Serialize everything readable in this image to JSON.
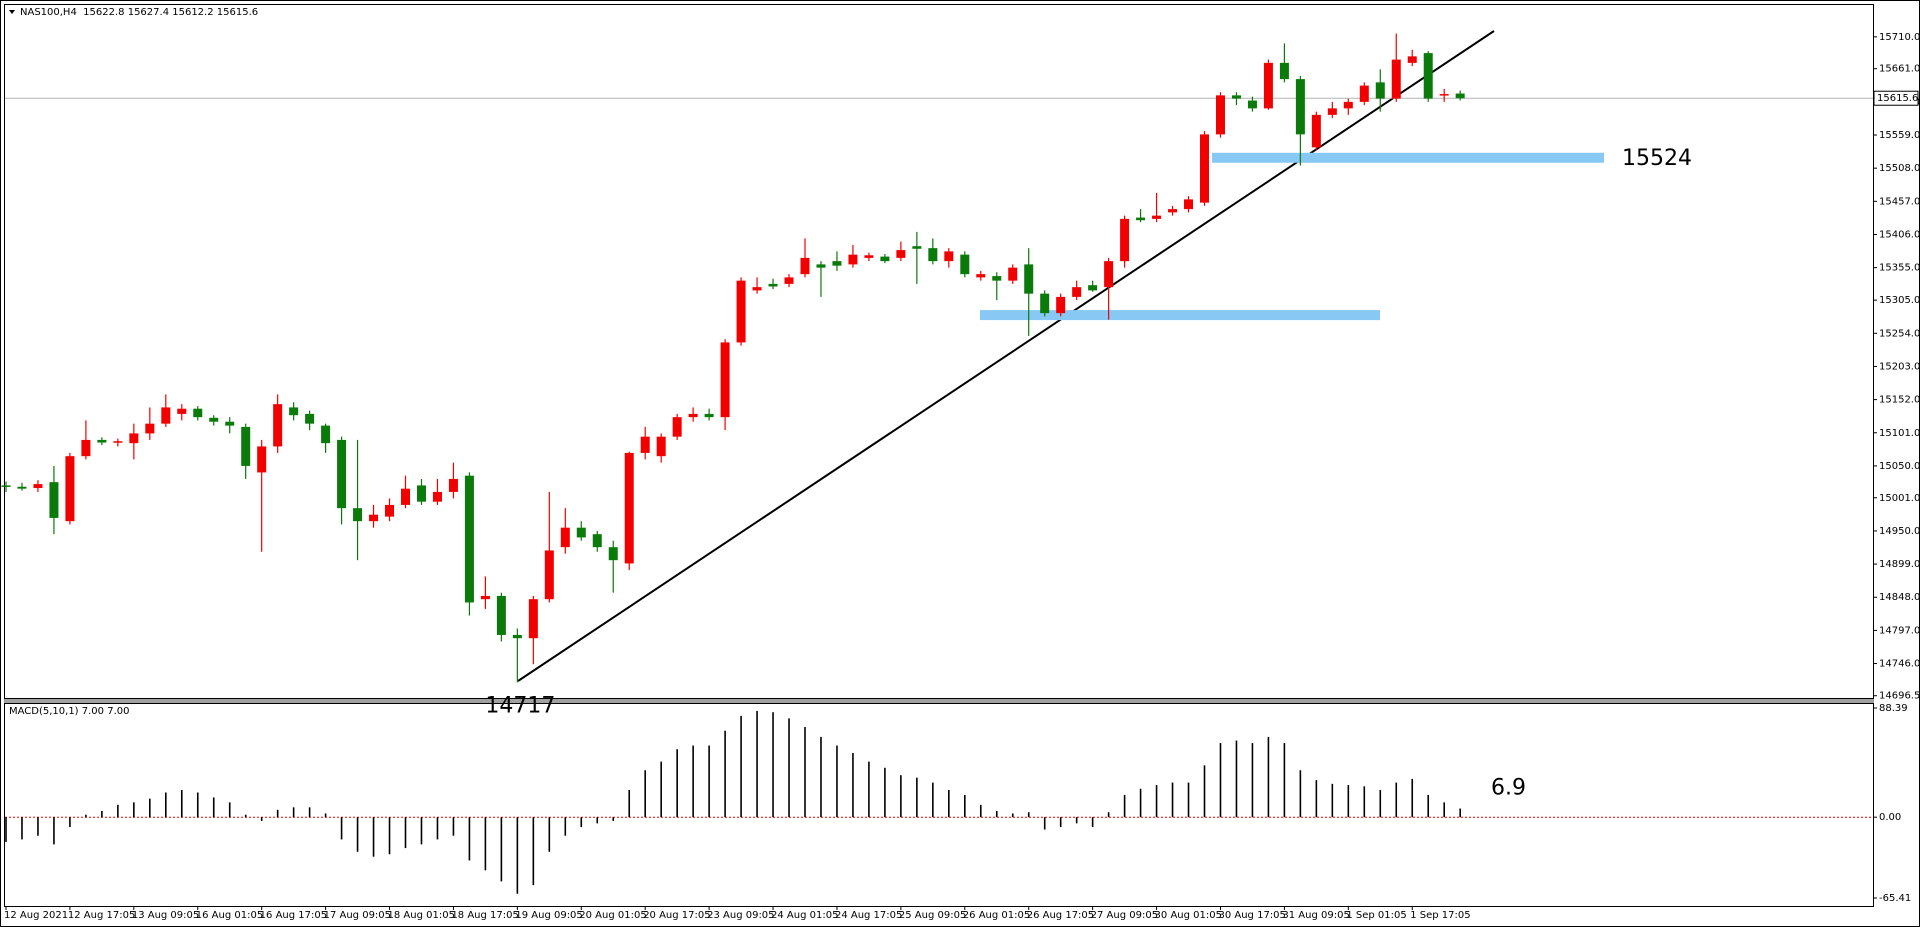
{
  "chart_data": [
    {
      "type": "candlestick",
      "title": "NAS100,H4  15622.8 15627.4 15612.2 15615.6",
      "categories": [
        "12 Aug 2021",
        null,
        null,
        null,
        "12 Aug 17:05",
        null,
        null,
        null,
        "13 Aug 09:05",
        null,
        null,
        null,
        "16 Aug 01:05",
        null,
        null,
        null,
        "16 Aug 17:05",
        null,
        null,
        null,
        "17 Aug 09:05",
        null,
        null,
        null,
        "18 Aug 01:05",
        null,
        null,
        null,
        "18 Aug 17:05",
        null,
        null,
        null,
        "19 Aug 09:05",
        null,
        null,
        null,
        "20 Aug 01:05",
        null,
        null,
        null,
        "20 Aug 17:05",
        null,
        null,
        null,
        "23 Aug 09:05",
        null,
        null,
        null,
        "24 Aug 01:05",
        null,
        null,
        null,
        "24 Aug 17:05",
        null,
        null,
        null,
        "25 Aug 09:05",
        null,
        null,
        null,
        "26 Aug 01:05",
        null,
        null,
        null,
        "26 Aug 17:05",
        null,
        null,
        null,
        "27 Aug 09:05",
        null,
        null,
        null,
        "30 Aug 01:05",
        null,
        null,
        null,
        "30 Aug 17:05",
        null,
        null,
        null,
        "31 Aug 09:05",
        null,
        null,
        null,
        "1 Sep 01:05",
        null,
        null,
        null,
        "1 Sep 17:05",
        null,
        null,
        null
      ],
      "open": [
        15020,
        15018,
        15016,
        15025,
        14965,
        15065,
        15090,
        15086,
        15085,
        15100,
        15115,
        15130,
        15138,
        15124,
        15118,
        15110,
        15040,
        15080,
        15140,
        15130,
        15112,
        15090,
        14985,
        14965,
        14972,
        14990,
        15020,
        14995,
        15010,
        15035,
        14845,
        14850,
        14790,
        14785,
        14845,
        14925,
        14955,
        14945,
        14925,
        14900,
        15070,
        15065,
        15095,
        15125,
        15130,
        15125,
        15240,
        15320,
        15330,
        15330,
        15345,
        15360,
        15365,
        15360,
        15370,
        15372,
        15370,
        15388,
        15385,
        15365,
        15375,
        15340,
        15342,
        15335,
        15360,
        15315,
        15285,
        15310,
        15328,
        15325,
        15365,
        15432,
        15430,
        15440,
        15445,
        15455,
        15560,
        15620,
        15612,
        15600,
        15670,
        15645,
        15540,
        15590,
        15600,
        15610,
        15640,
        15615,
        15670,
        15685,
        15620,
        15622.8
      ],
      "high": [
        15026,
        15024,
        15028,
        15050,
        15070,
        15120,
        15094,
        15092,
        15115,
        15140,
        15160,
        15145,
        15142,
        15128,
        15125,
        15115,
        15090,
        15160,
        15148,
        15135,
        15115,
        15095,
        15090,
        14990,
        15000,
        15035,
        15030,
        15030,
        15055,
        15040,
        14880,
        14855,
        14800,
        14850,
        15010,
        14985,
        14965,
        14950,
        14935,
        15072,
        15110,
        15100,
        15130,
        15140,
        15138,
        15245,
        15340,
        15340,
        15338,
        15345,
        15400,
        15365,
        15380,
        15390,
        15378,
        15376,
        15395,
        15410,
        15400,
        15385,
        15380,
        15350,
        15348,
        15360,
        15385,
        15320,
        15315,
        15335,
        15335,
        15370,
        15435,
        15445,
        15470,
        15450,
        15465,
        15565,
        15625,
        15625,
        15618,
        15675,
        15700,
        15650,
        15595,
        15610,
        15615,
        15640,
        15660,
        15715,
        15690,
        15688,
        15630,
        15627.4
      ],
      "low": [
        15010,
        15012,
        15010,
        14945,
        14960,
        15060,
        15082,
        15080,
        15060,
        15090,
        15110,
        15120,
        15120,
        15112,
        15100,
        15030,
        14918,
        15070,
        15120,
        15105,
        15070,
        14960,
        14905,
        14955,
        14965,
        14985,
        14990,
        14990,
        15000,
        14820,
        14830,
        14780,
        14717,
        14745,
        14840,
        14915,
        14935,
        14918,
        14855,
        14890,
        15060,
        15055,
        15090,
        15118,
        15120,
        15105,
        15235,
        15315,
        15322,
        15325,
        15340,
        15310,
        15350,
        15355,
        15365,
        15362,
        15365,
        15330,
        15360,
        15355,
        15340,
        15335,
        15305,
        15330,
        15250,
        15280,
        15280,
        15305,
        15318,
        15275,
        15355,
        15425,
        15425,
        15435,
        15440,
        15450,
        15555,
        15605,
        15595,
        15598,
        15640,
        15512,
        15535,
        15585,
        15590,
        15605,
        15595,
        15610,
        15665,
        15610,
        15610,
        15612.2
      ],
      "close": [
        15018,
        15015,
        15022,
        14970,
        15065,
        15090,
        15086,
        15088,
        15100,
        15115,
        15140,
        15138,
        15125,
        15118,
        15112,
        15050,
        15080,
        15145,
        15128,
        15115,
        15085,
        14985,
        14965,
        14975,
        14990,
        15015,
        14995,
        15010,
        15030,
        14840,
        14850,
        14790,
        14785,
        14845,
        14920,
        14955,
        14940,
        14925,
        14905,
        15070,
        15095,
        15095,
        15125,
        15130,
        15125,
        15240,
        15335,
        15325,
        15326,
        15340,
        15370,
        15355,
        15358,
        15375,
        15374,
        15365,
        15382,
        15384,
        15365,
        15380,
        15345,
        15345,
        15335,
        15355,
        15315,
        15285,
        15310,
        15325,
        15320,
        15365,
        15430,
        15428,
        15435,
        15445,
        15460,
        15560,
        15620,
        15615,
        15600,
        15670,
        15645,
        15560,
        15590,
        15600,
        15610,
        15635,
        15615,
        15675,
        15680,
        15615,
        15622,
        15615.6
      ],
      "up_color": "#f20000",
      "down_color": "#0a7a0a",
      "ylim": [
        14693,
        15759
      ],
      "yticks": [
        {
          "value": 15710,
          "label": "15710.0"
        },
        {
          "value": 15661,
          "label": "15661.0"
        },
        {
          "value": 15610,
          "label": "15610.0"
        },
        {
          "value": 15559,
          "label": "15559.0"
        },
        {
          "value": 15508,
          "label": "15508.0"
        },
        {
          "value": 15457,
          "label": "15457.0"
        },
        {
          "value": 15406,
          "label": "15406.0"
        },
        {
          "value": 15355,
          "label": "15355.0"
        },
        {
          "value": 15305,
          "label": "15305.0"
        },
        {
          "value": 15254,
          "label": "15254.0"
        },
        {
          "value": 15203,
          "label": "15203.0"
        },
        {
          "value": 15152,
          "label": "15152.0"
        },
        {
          "value": 15101,
          "label": "15101.0"
        },
        {
          "value": 15050,
          "label": "15050.0"
        },
        {
          "value": 15001,
          "label": "15001.0"
        },
        {
          "value": 14950,
          "label": "14950.0"
        },
        {
          "value": 14899,
          "label": "14899.0"
        },
        {
          "value": 14848,
          "label": "14848.0"
        },
        {
          "value": 14797,
          "label": "14797.0"
        },
        {
          "value": 14746,
          "label": "14746.0"
        },
        14696.5
      ],
      "last_price": 15615.6,
      "levels": [
        15282,
        15524
      ],
      "level_label": 15524,
      "level_color": "#87c8f5",
      "low_marker": 14717,
      "annotation_color": "#f20000"
    },
    {
      "type": "bar",
      "title": "MACD(5,10,1) 7.00 7.00",
      "values": [
        -20,
        -18,
        -15,
        -22,
        -8,
        2,
        5,
        10,
        12,
        15,
        20,
        22,
        20,
        16,
        12,
        2,
        -3,
        6,
        8,
        8,
        3,
        -18,
        -28,
        -32,
        -30,
        -25,
        -22,
        -18,
        -15,
        -35,
        -43,
        -52,
        -62,
        -55,
        -28,
        -15,
        -8,
        -5,
        -3,
        22,
        38,
        45,
        55,
        58,
        58,
        70,
        82,
        86,
        85,
        80,
        73,
        65,
        58,
        52,
        45,
        40,
        34,
        32,
        28,
        22,
        18,
        10,
        5,
        3,
        4,
        -10,
        -8,
        -5,
        -8,
        4,
        18,
        23,
        26,
        28,
        28,
        42,
        60,
        62,
        60,
        65,
        60,
        38,
        30,
        27,
        26,
        25,
        22,
        28,
        31,
        18,
        12,
        7
      ],
      "color": "#000000",
      "ylim": [
        -65.41,
        88.39
      ],
      "yticks": [
        88.39,
        {
          "value": 0,
          "label": "0.00"
        },
        -65.41
      ],
      "annotation": 6.9,
      "annotation_color": "#f20000"
    }
  ]
}
